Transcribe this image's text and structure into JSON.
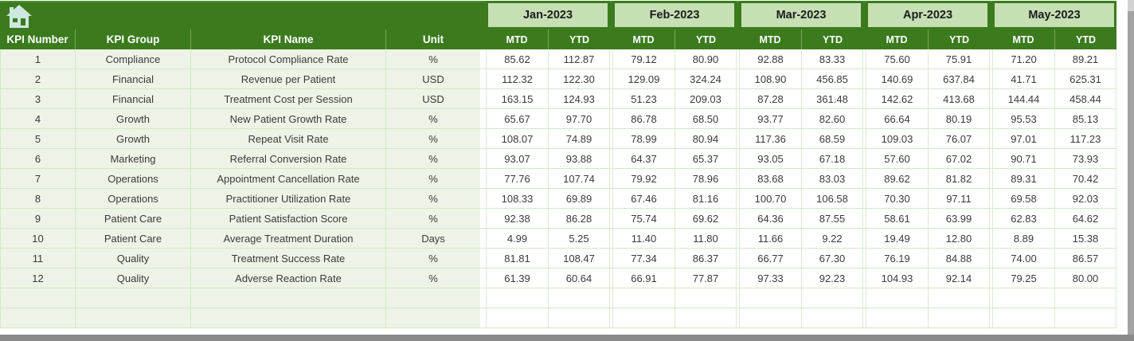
{
  "colors": {
    "dark_green": "#3b7b1e",
    "light_green": "#c6e0b4",
    "pale_green_row": "#edf4e6",
    "grid_line": "#d6e7c8",
    "home_icon_fill": "#cde8e0",
    "window_edge_gray": "#8a8a8a"
  },
  "table": {
    "columns": [
      "KPI Number",
      "KPI Group",
      "KPI Name",
      "Unit"
    ],
    "months": [
      "Jan-2023",
      "Feb-2023",
      "Mar-2023",
      "Apr-2023",
      "May-2023"
    ],
    "sub": [
      "MTD",
      "YTD"
    ],
    "rows": [
      {
        "num": "1",
        "group": "Compliance",
        "name": "Protocol Compliance Rate",
        "unit": "%",
        "values": [
          "85.62",
          "112.87",
          "79.12",
          "80.90",
          "92.88",
          "83.33",
          "75.60",
          "75.91",
          "71.20",
          "89.21"
        ]
      },
      {
        "num": "2",
        "group": "Financial",
        "name": "Revenue per Patient",
        "unit": "USD",
        "values": [
          "112.32",
          "122.30",
          "129.09",
          "324.24",
          "108.90",
          "456.85",
          "140.69",
          "637.84",
          "41.71",
          "625.31"
        ]
      },
      {
        "num": "3",
        "group": "Financial",
        "name": "Treatment Cost per Session",
        "unit": "USD",
        "values": [
          "163.15",
          "124.93",
          "51.23",
          "209.03",
          "87.28",
          "361.48",
          "142.62",
          "413.68",
          "144.44",
          "458.44"
        ]
      },
      {
        "num": "4",
        "group": "Growth",
        "name": "New Patient Growth Rate",
        "unit": "%",
        "values": [
          "65.67",
          "97.70",
          "86.78",
          "68.50",
          "93.77",
          "82.60",
          "66.64",
          "80.19",
          "95.53",
          "85.13"
        ]
      },
      {
        "num": "5",
        "group": "Growth",
        "name": "Repeat Visit Rate",
        "unit": "%",
        "values": [
          "108.07",
          "74.89",
          "78.99",
          "80.94",
          "117.36",
          "68.59",
          "109.03",
          "76.07",
          "97.01",
          "117.23"
        ]
      },
      {
        "num": "6",
        "group": "Marketing",
        "name": "Referral Conversion Rate",
        "unit": "%",
        "values": [
          "93.07",
          "93.88",
          "64.37",
          "65.37",
          "93.05",
          "67.18",
          "57.60",
          "67.02",
          "90.71",
          "73.93"
        ]
      },
      {
        "num": "7",
        "group": "Operations",
        "name": "Appointment Cancellation Rate",
        "unit": "%",
        "values": [
          "77.76",
          "107.74",
          "79.92",
          "78.96",
          "83.68",
          "83.03",
          "89.62",
          "81.82",
          "89.31",
          "70.42"
        ]
      },
      {
        "num": "8",
        "group": "Operations",
        "name": "Practitioner Utilization Rate",
        "unit": "%",
        "values": [
          "108.33",
          "69.89",
          "67.46",
          "81.16",
          "100.70",
          "106.58",
          "70.30",
          "97.11",
          "69.58",
          "92.03"
        ]
      },
      {
        "num": "9",
        "group": "Patient Care",
        "name": "Patient Satisfaction Score",
        "unit": "%",
        "values": [
          "92.38",
          "86.28",
          "75.74",
          "69.62",
          "64.36",
          "87.55",
          "58.61",
          "63.99",
          "62.83",
          "64.62"
        ]
      },
      {
        "num": "10",
        "group": "Patient Care",
        "name": "Average Treatment Duration",
        "unit": "Days",
        "values": [
          "4.99",
          "5.25",
          "11.40",
          "11.80",
          "11.66",
          "9.22",
          "19.49",
          "12.80",
          "8.89",
          "15.38"
        ]
      },
      {
        "num": "11",
        "group": "Quality",
        "name": "Treatment Success Rate",
        "unit": "%",
        "values": [
          "81.81",
          "108.47",
          "77.34",
          "86.37",
          "66.77",
          "67.30",
          "76.19",
          "84.88",
          "74.00",
          "86.57"
        ]
      },
      {
        "num": "12",
        "group": "Quality",
        "name": "Adverse Reaction Rate",
        "unit": "%",
        "values": [
          "61.39",
          "60.64",
          "66.91",
          "77.87",
          "97.33",
          "92.23",
          "104.93",
          "92.14",
          "79.25",
          "80.00"
        ]
      }
    ],
    "empty_rows": 2
  }
}
